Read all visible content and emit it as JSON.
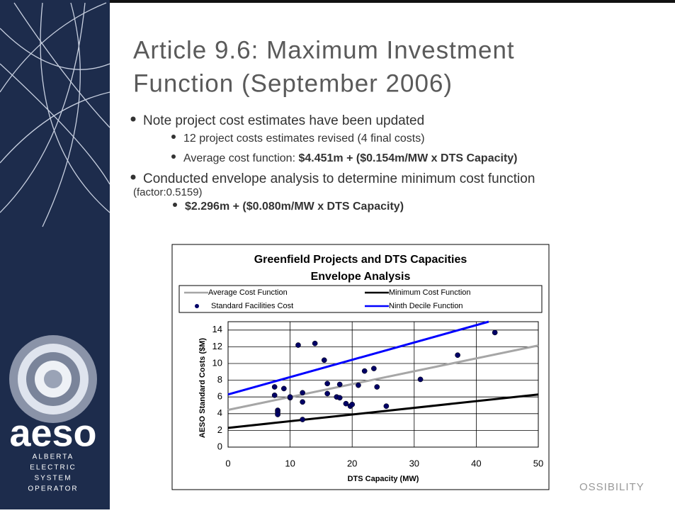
{
  "slide": {
    "title": [
      "Article 9.6: Maximum Investment",
      "Function (September 2006)"
    ],
    "bullets": [
      {
        "text": "Note project cost estimates have been updated",
        "sub": [
          {
            "text": "12 project costs estimates revised (4 final costs)"
          },
          {
            "text": "Average cost function: ",
            "bold": "$4.451m + ($0.154m/MW x DTS Capacity)"
          }
        ]
      },
      {
        "text": "Conducted envelope analysis to determine minimum cost function",
        "note": "(factor:0.5159)",
        "sub": [
          {
            "bold": "$2.296m + ($0.080m/MW x DTS Capacity)"
          }
        ]
      }
    ],
    "logo": "aeso",
    "logo_lines": [
      "ALBERTA",
      "ELECTRIC",
      "SYSTEM",
      "OPERATOR"
    ],
    "footer": "OSSIBILITY"
  },
  "chart_data": {
    "type": "scatter",
    "title": [
      "Greenfield Projects and DTS Capacities",
      "Envelope Analysis"
    ],
    "xlabel": "DTS Capacity (MW)",
    "ylabel": "AESO Standard Costs ($M)",
    "xlim": [
      0,
      50
    ],
    "ylim": [
      0,
      15
    ],
    "xticks": [
      0,
      10,
      20,
      30,
      40,
      50
    ],
    "yticks": [
      0,
      2,
      4,
      6,
      8,
      10,
      12,
      14
    ],
    "grid": true,
    "series": [
      {
        "name": "Average Cost Function",
        "kind": "line",
        "color": "#a6a6a6",
        "x": [
          0,
          50
        ],
        "values": [
          4.451,
          12.151
        ]
      },
      {
        "name": "Minimum Cost Function",
        "kind": "line",
        "color": "#000000",
        "x": [
          0,
          50
        ],
        "values": [
          2.296,
          6.296
        ]
      },
      {
        "name": "Standard Facilities Cost",
        "kind": "scatter",
        "color": "#000066",
        "x": [
          7.5,
          7.5,
          8,
          8,
          8,
          9,
          10,
          10,
          11.3,
          12,
          12,
          12,
          14,
          15.5,
          16,
          16,
          17.5,
          18,
          18,
          19,
          19.7,
          20,
          21,
          22,
          23.5,
          24,
          25.5,
          31,
          37,
          43
        ],
        "values": [
          7.2,
          6.2,
          4.4,
          4.2,
          3.9,
          7.0,
          5.9,
          6.0,
          12.2,
          6.5,
          5.4,
          3.3,
          12.4,
          10.4,
          7.6,
          6.4,
          6.0,
          7.5,
          5.9,
          5.2,
          4.9,
          5.1,
          7.4,
          9.1,
          9.4,
          7.2,
          4.9,
          8.1,
          11.0,
          13.7
        ]
      },
      {
        "name": "Ninth Decile Function",
        "kind": "line",
        "color": "#0000ff",
        "x": [
          0,
          42
        ],
        "values": [
          6.3,
          15.0
        ]
      }
    ]
  }
}
